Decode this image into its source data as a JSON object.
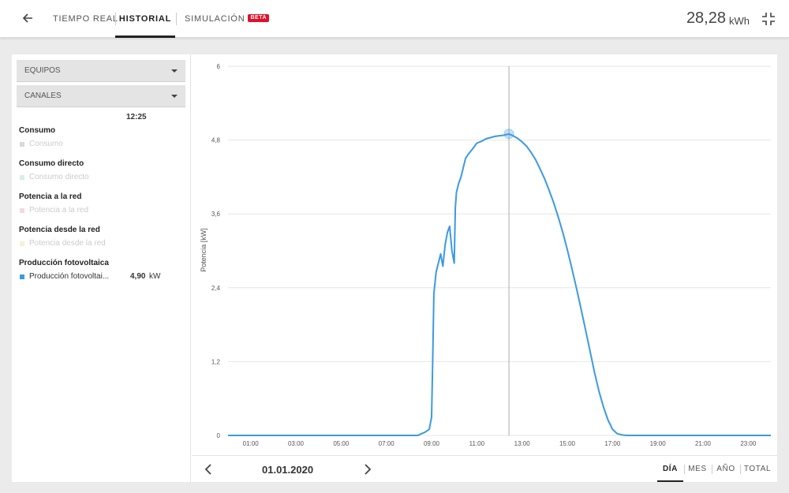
{
  "header": {
    "tabs": [
      "TIEMPO REAL",
      "HISTORIAL",
      "SIMULACIÓN"
    ],
    "badge": "BETA",
    "energy_value": "28,28",
    "energy_unit": "kWh"
  },
  "sidebar": {
    "dropdowns": [
      "EQUIPOS",
      "CANALES"
    ],
    "cursor_time": "12:25",
    "channels": [
      {
        "title": "Consumo",
        "label": "Consumo",
        "color": "#d9d9d9"
      },
      {
        "title": "Consumo directo",
        "label": "Consumo directo",
        "color": "#d9efe4"
      },
      {
        "title": "Potencia a la red",
        "label": "Potencia a la red",
        "color": "#f4d8e4"
      },
      {
        "title": "Potencia desde la red",
        "label": "Potencia desde la red",
        "color": "#f6f1d6"
      },
      {
        "title": "Producción fotovoltaica",
        "label": "Producción fotovoltai...",
        "color": "#3b9ae1",
        "value": "4,90",
        "unit": "kW"
      }
    ]
  },
  "footer": {
    "date": "01.01.2020",
    "periods": [
      "DÍA",
      "MES",
      "AÑO",
      "TOTAL"
    ]
  },
  "chart_data": {
    "type": "line",
    "ylabel": "Potencia [kW]",
    "ylim": [
      0,
      6
    ],
    "yticks": [
      "0",
      "1,2",
      "2,4",
      "3,6",
      "4,8",
      "6"
    ],
    "yticks_values": [
      0,
      1.2,
      2.4,
      3.6,
      4.8,
      6
    ],
    "xticks": [
      "01:00",
      "03:00",
      "05:00",
      "07:00",
      "09:00",
      "11:00",
      "13:00",
      "15:00",
      "17:00",
      "19:00",
      "21:00",
      "23:00"
    ],
    "xlim_hours": [
      0,
      24
    ],
    "cursor_hour": 12.42,
    "cursor_value": 4.9,
    "series": [
      {
        "color": "#3b9ae1",
        "x": [
          0,
          8.4,
          8.5,
          8.7,
          8.9,
          9.0,
          9.05,
          9.1,
          9.2,
          9.3,
          9.4,
          9.5,
          9.6,
          9.7,
          9.8,
          9.9,
          10.0,
          10.05,
          10.1,
          10.2,
          10.3,
          10.4,
          10.5,
          10.6,
          10.8,
          11.0,
          11.2,
          11.4,
          11.6,
          11.8,
          12.0,
          12.2,
          12.42,
          12.6,
          12.8,
          13.0,
          13.2,
          13.4,
          13.6,
          13.8,
          14.0,
          14.2,
          14.4,
          14.6,
          14.8,
          15.0,
          15.2,
          15.4,
          15.6,
          15.8,
          16.0,
          16.2,
          16.4,
          16.6,
          16.8,
          17.0,
          17.2,
          17.4,
          17.6,
          18.0,
          24
        ],
        "y": [
          0,
          0,
          0.02,
          0.05,
          0.1,
          0.3,
          1.2,
          2.3,
          2.65,
          2.8,
          2.95,
          2.75,
          3.1,
          3.3,
          3.4,
          3.0,
          2.8,
          3.7,
          3.95,
          4.1,
          4.2,
          4.35,
          4.5,
          4.56,
          4.65,
          4.75,
          4.78,
          4.82,
          4.84,
          4.86,
          4.87,
          4.88,
          4.9,
          4.87,
          4.83,
          4.77,
          4.7,
          4.6,
          4.48,
          4.33,
          4.17,
          3.98,
          3.78,
          3.55,
          3.3,
          3.02,
          2.72,
          2.4,
          2.07,
          1.73,
          1.38,
          1.03,
          0.72,
          0.46,
          0.25,
          0.1,
          0.03,
          0.01,
          0,
          0,
          0
        ]
      }
    ]
  }
}
